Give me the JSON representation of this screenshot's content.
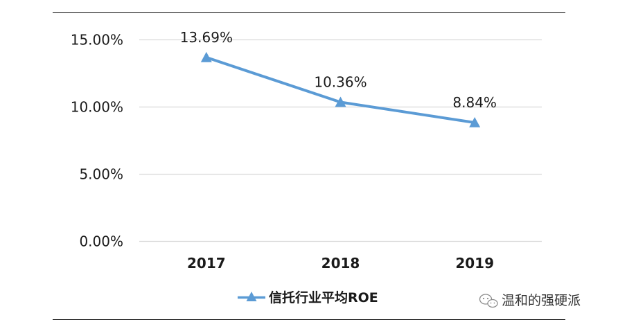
{
  "chart_data": {
    "type": "line",
    "categories": [
      "2017",
      "2018",
      "2019"
    ],
    "series": [
      {
        "name": "信托行业平均ROE",
        "values": [
          13.69,
          10.36,
          8.84
        ],
        "data_labels": [
          "13.69%",
          "10.36%",
          "8.84%"
        ],
        "color": "#5b9bd5",
        "marker": "triangle"
      }
    ],
    "y_ticks": [
      "0.00%",
      "5.00%",
      "10.00%",
      "15.00%"
    ],
    "y_tick_values": [
      0,
      5,
      10,
      15
    ],
    "ylim": [
      0,
      15.6
    ],
    "grid": true,
    "legend_position": "bottom",
    "title": "",
    "xlabel": "",
    "ylabel": ""
  },
  "style": {
    "line_color": "#5b9bd5",
    "grid_color": "#d9d9d9",
    "frame_color": "#000000",
    "text_color": "#1a1a1a"
  },
  "watermark": {
    "icon": "wechat-icon",
    "text": "温和的强硬派"
  }
}
